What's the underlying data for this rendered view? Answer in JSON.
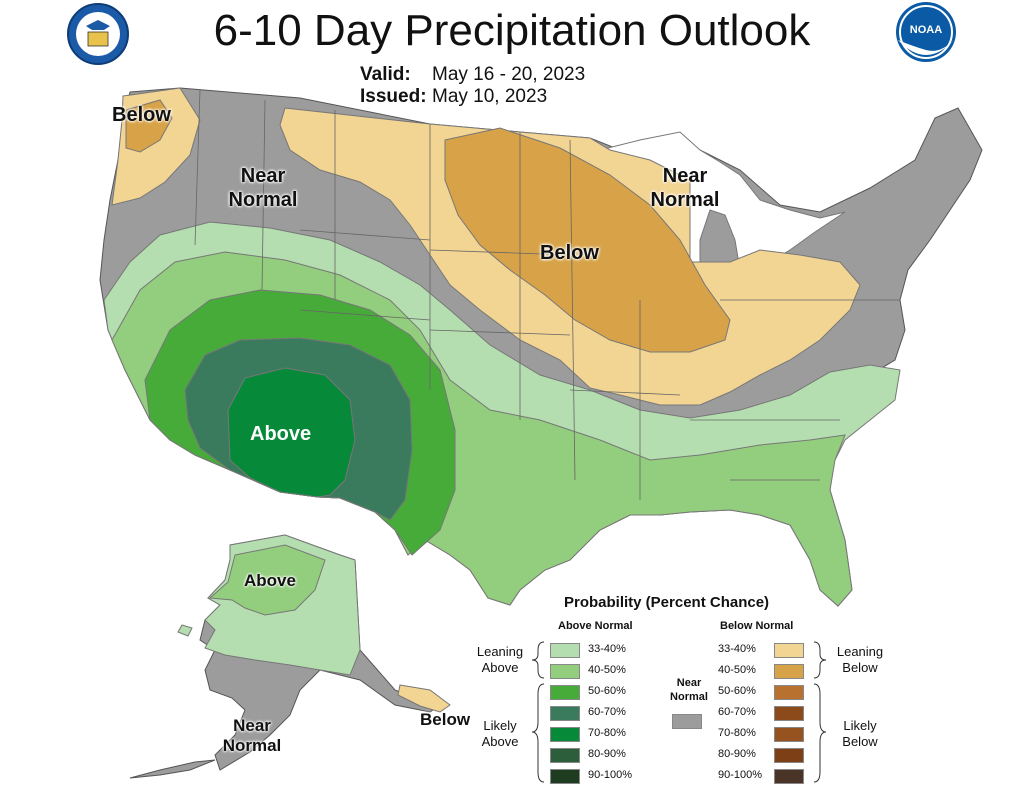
{
  "title": "6-10 Day Precipitation Outlook",
  "valid_label": "Valid:",
  "valid_value": "May 16 - 20, 2023",
  "issued_label": "Issued:",
  "issued_value": "May 10, 2023",
  "logos": {
    "left": {
      "name": "Department of Commerce seal",
      "text": "DEPARTMENT OF COMMERCE UNITED STATES OF AMERICA"
    },
    "right": {
      "name": "NOAA logo",
      "text": "NOAA"
    }
  },
  "map_labels": {
    "below_pnw": "Below",
    "near_normal_west_1": "Near",
    "near_normal_west_2": "Normal",
    "near_normal_east_1": "Near",
    "near_normal_east_2": "Normal",
    "below_central": "Below",
    "above_sw": "Above",
    "above_ak": "Above",
    "near_normal_ak_1": "Near",
    "near_normal_ak_2": "Normal",
    "below_ak": "Below"
  },
  "colors": {
    "above_33_40": "#b5deb0",
    "above_40_50": "#93cd7e",
    "above_50_60": "#47ab3a",
    "above_60_70": "#3a7b5e",
    "above_70_80": "#068a39",
    "above_80_90": "#2d5e3c",
    "above_90_100": "#1e3c1f",
    "below_33_40": "#f2d493",
    "below_40_50": "#d8a348",
    "below_50_60": "#b8712f",
    "below_60_70": "#8c4a1b",
    "below_70_80": "#96521f",
    "below_80_90": "#7c3f16",
    "below_90_100": "#4a3428",
    "near_normal": "#9d9c9d",
    "state_line": "#666666"
  },
  "legend": {
    "title": "Probability (Percent Chance)",
    "above_header": "Above Normal",
    "below_header": "Below Normal",
    "near_header_1": "Near",
    "near_header_2": "Normal",
    "above_rows": [
      "33-40%",
      "40-50%",
      "50-60%",
      "60-70%",
      "70-80%",
      "80-90%",
      "90-100%"
    ],
    "below_rows": [
      "33-40%",
      "40-50%",
      "50-60%",
      "60-70%",
      "70-80%",
      "80-90%",
      "90-100%"
    ],
    "leaning_above_1": "Leaning",
    "leaning_above_2": "Above",
    "likely_above_1": "Likely",
    "likely_above_2": "Above",
    "leaning_below_1": "Leaning",
    "leaning_below_2": "Below",
    "likely_below_1": "Likely",
    "likely_below_2": "Below"
  }
}
